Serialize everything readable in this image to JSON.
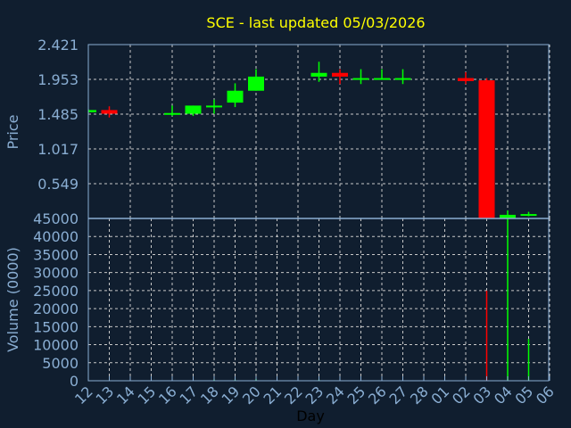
{
  "chart_data": {
    "type": "candlestick",
    "title": "SCE - last updated 05/03/2026",
    "xlabel": "Day",
    "ylabel": "Price",
    "volume_label": "Volume (0000)",
    "x_ticks": [
      "12",
      "13",
      "14",
      "15",
      "16",
      "17",
      "18",
      "19",
      "20",
      "21",
      "22",
      "23",
      "24",
      "25",
      "26",
      "27",
      "28",
      "01",
      "02",
      "03",
      "04",
      "05",
      "06"
    ],
    "y_ticks": [
      "0.549",
      "1.017",
      "1.485",
      "1.953",
      "2.421"
    ],
    "ylim": [
      0.081,
      2.421
    ],
    "volume_ticks": [
      "0",
      "5000",
      "10000",
      "15000",
      "20000",
      "25000",
      "30000",
      "35000",
      "40000",
      "45000"
    ],
    "volume_lim": [
      0,
      45000
    ],
    "grid": true,
    "colors": {
      "up": "#00ff00",
      "down": "#ff0000",
      "title": "#ffff00",
      "axis": "#8aaed3",
      "background": "#101e2f"
    },
    "candles": [
      {
        "day": "12",
        "open": 1.51,
        "high": 1.55,
        "low": 1.5,
        "close": 1.54,
        "volume": 0
      },
      {
        "day": "13",
        "open": 1.54,
        "high": 1.59,
        "low": 1.44,
        "close": 1.49,
        "volume": 0
      },
      {
        "day": "16",
        "open": 1.48,
        "high": 1.6,
        "low": 1.46,
        "close": 1.5,
        "volume": 0
      },
      {
        "day": "17",
        "open": 1.49,
        "high": 1.6,
        "low": 1.46,
        "close": 1.6,
        "volume": 0
      },
      {
        "day": "18",
        "open": 1.58,
        "high": 1.68,
        "low": 1.49,
        "close": 1.6,
        "volume": 300
      },
      {
        "day": "19",
        "open": 1.64,
        "high": 1.9,
        "low": 1.58,
        "close": 1.8,
        "volume": 300
      },
      {
        "day": "20",
        "open": 1.8,
        "high": 2.09,
        "low": 1.8,
        "close": 1.99,
        "volume": 400
      },
      {
        "day": "23",
        "open": 1.99,
        "high": 2.19,
        "low": 1.92,
        "close": 2.04,
        "volume": 300
      },
      {
        "day": "24",
        "open": 2.04,
        "high": 2.09,
        "low": 1.89,
        "close": 1.99,
        "volume": 0
      },
      {
        "day": "25",
        "open": 1.95,
        "high": 2.09,
        "low": 1.89,
        "close": 1.97,
        "volume": 0
      },
      {
        "day": "26",
        "open": 1.96,
        "high": 2.09,
        "low": 1.95,
        "close": 1.97,
        "volume": 0
      },
      {
        "day": "27",
        "open": 1.96,
        "high": 2.09,
        "low": 1.89,
        "close": 1.97,
        "volume": 0
      },
      {
        "day": "02",
        "open": 1.97,
        "high": 2.05,
        "low": 1.89,
        "close": 1.93,
        "volume": 0
      },
      {
        "day": "03",
        "open": 1.94,
        "high": 1.97,
        "low": 0.081,
        "close": 0.081,
        "volume": 25000
      },
      {
        "day": "04",
        "open": 0.081,
        "high": 0.19,
        "low": 0.0,
        "close": 0.13,
        "volume": 48000
      },
      {
        "day": "05",
        "open": 0.12,
        "high": 0.17,
        "low": 0.11,
        "close": 0.14,
        "volume": 11600
      }
    ]
  }
}
